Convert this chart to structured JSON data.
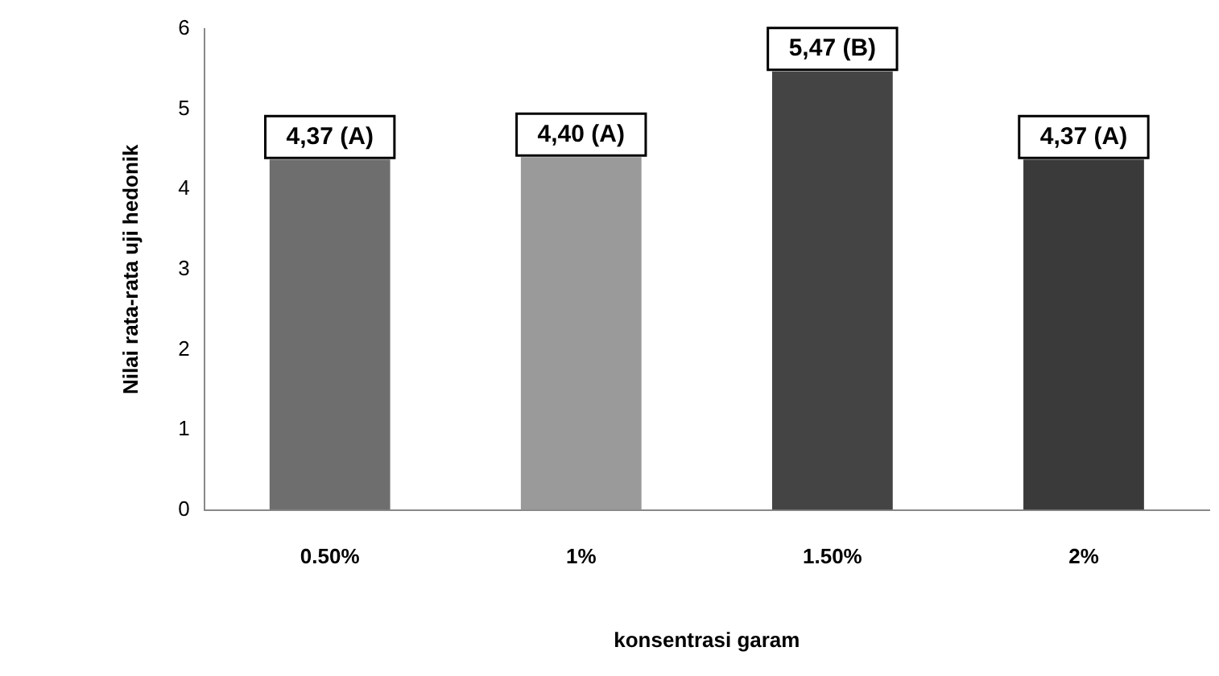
{
  "chart_data": {
    "type": "bar",
    "xlabel": "konsentrasi garam",
    "ylabel": "Nilai rata-rata uji hedonik",
    "categories": [
      "0.50%",
      "1%",
      "1.50%",
      "2%"
    ],
    "values": [
      4.37,
      4.4,
      5.47,
      4.37
    ],
    "colors": [
      "#6e6e6e",
      "#9a9a9a",
      "#444444",
      "#3a3a3a"
    ],
    "value_labels": [
      "4,37 (A)",
      "4,40 (A)",
      "5,47 (B)",
      "4,37 (A)"
    ],
    "ylim": [
      0,
      6
    ],
    "yticks": [
      0,
      1,
      2,
      3,
      4,
      5,
      6
    ],
    "grid": false,
    "legend": false
  }
}
